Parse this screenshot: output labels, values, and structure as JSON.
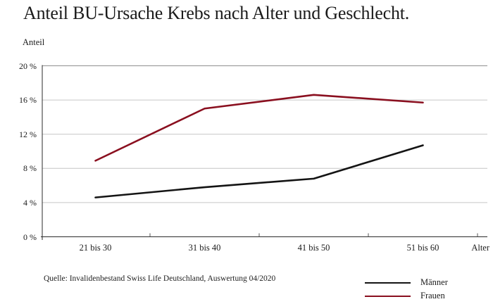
{
  "page": {
    "title": "Anteil BU-Ursache Krebs nach Alter und Geschlecht.",
    "source_note": "Quelle: Invalidenbestand Swiss Life Deutschland, Auswertung 04/2020"
  },
  "chart_data": {
    "type": "line",
    "title": "Anteil BU-Ursache Krebs nach Alter und Geschlecht.",
    "xlabel": "Alter",
    "ylabel": "Anteil",
    "categories": [
      "21 bis 30",
      "31 bis 40",
      "41 bis 50",
      "51 bis 60"
    ],
    "series": [
      {
        "name": "Männer",
        "color": "#141414",
        "values": [
          4.6,
          5.8,
          6.8,
          10.7
        ]
      },
      {
        "name": "Frauen",
        "color": "#8a0f1f",
        "values": [
          8.9,
          15.0,
          16.6,
          15.7
        ]
      }
    ],
    "ylim": [
      0,
      20
    ],
    "y_tick_values": [
      0,
      4,
      8,
      12,
      16,
      20
    ],
    "y_tick_labels": [
      "0 %",
      "4 %",
      "8 %",
      "12 %",
      "16 %",
      "20 %"
    ],
    "grid": "horizontal gridlines at each y tick",
    "legend_position": "bottom-right",
    "colors": {
      "grid_light": "#c6c6c6",
      "grid_top": "#8f8f8f",
      "axis": "#2b2b2b"
    }
  }
}
